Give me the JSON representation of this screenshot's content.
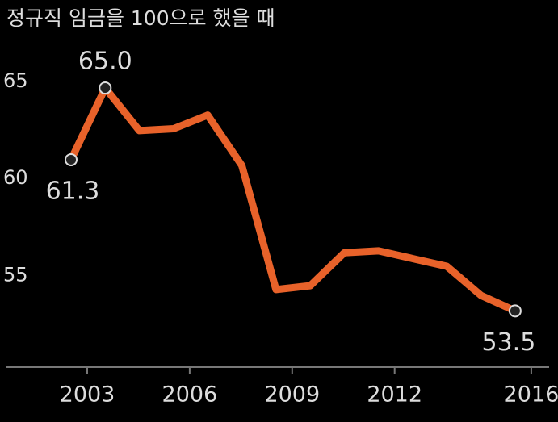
{
  "chart_data": {
    "type": "line",
    "title": "정규직 임금을 100으로 했을 때",
    "categories": [
      "2003",
      null,
      null,
      "2006",
      null,
      null,
      "2009",
      null,
      null,
      "2012",
      null,
      null,
      null,
      "2016"
    ],
    "series": [
      {
        "name": null,
        "color": "#e8622a",
        "values": [
          61.3,
          65.0,
          62.8,
          62.9,
          63.6,
          61.0,
          54.6,
          54.8,
          56.5,
          56.6,
          56.2,
          55.8,
          54.3,
          53.5
        ],
        "value_labels": [
          "61.3",
          "65.0",
          null,
          null,
          null,
          null,
          null,
          null,
          null,
          null,
          null,
          null,
          null,
          "53.5"
        ]
      }
    ],
    "ylim": [
      50.6,
      67
    ],
    "yticks": [
      55,
      60,
      65
    ],
    "grid": false
  }
}
